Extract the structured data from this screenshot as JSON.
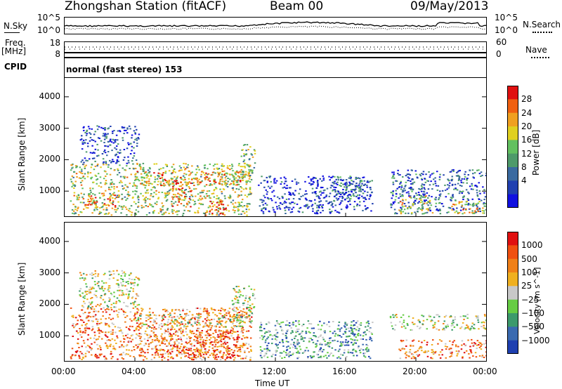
{
  "header": {
    "title": "Zhongshan Station (fitACF)",
    "beam": "Beam 00",
    "date": "09/May/2013"
  },
  "noise_panel": {
    "left_label": "N.Sky",
    "right_label": "N.Search",
    "left_ticks": [
      "10^5",
      "10^0"
    ],
    "right_ticks": [
      "10^5",
      "10^0"
    ]
  },
  "freq_panel": {
    "left_label_1": "Freq.",
    "left_label_2": "[MHz]",
    "left_ticks": [
      "18",
      "8"
    ],
    "right_label": "Nave",
    "right_ticks": [
      "60",
      "0"
    ]
  },
  "cpid_panel": {
    "label": "CPID",
    "text": "normal (fast stereo) 153"
  },
  "chart_data": [
    {
      "type": "heatmap",
      "quantity": "Power",
      "colorbar_label": "Power [dB]",
      "colorbar_ticks": [
        28,
        24,
        20,
        16,
        12,
        8,
        4
      ],
      "color_scale": [
        "#1010e0",
        "#2040b0",
        "#3a6aa0",
        "#4e9a6a",
        "#63c060",
        "#e0d020",
        "#f0a020",
        "#f06010",
        "#e01010"
      ],
      "ylabel": "Slant Range [km]",
      "y_ticks": [
        1000,
        2000,
        3000,
        4000
      ],
      "ylim": [
        200,
        4600
      ],
      "xlabel": "",
      "clusters": [
        {
          "t0": 0.3,
          "t1": 10.6,
          "r0": 250,
          "r1": 1900,
          "v": 0.55
        },
        {
          "t0": 0.8,
          "t1": 4.2,
          "r0": 1900,
          "r1": 3100,
          "v": 0.15
        },
        {
          "t0": 4.0,
          "t1": 10.5,
          "r0": 1200,
          "r1": 1650,
          "v": 0.7
        },
        {
          "t0": 6.0,
          "t1": 7.2,
          "r0": 500,
          "r1": 1400,
          "v": 0.9
        },
        {
          "t0": 8.2,
          "t1": 9.3,
          "r0": 280,
          "r1": 700,
          "v": 0.95
        },
        {
          "t0": 1.0,
          "t1": 3.0,
          "r0": 550,
          "r1": 900,
          "v": 0.85
        },
        {
          "t0": 10.0,
          "t1": 10.8,
          "r0": 1300,
          "r1": 2500,
          "v": 0.5
        },
        {
          "t0": 11.0,
          "t1": 17.5,
          "r0": 300,
          "r1": 1500,
          "v": 0.15
        },
        {
          "t0": 15.2,
          "t1": 17.0,
          "r0": 700,
          "r1": 1500,
          "v": 0.3
        },
        {
          "t0": 18.5,
          "t1": 24.0,
          "r0": 300,
          "r1": 1700,
          "v": 0.25
        },
        {
          "t0": 19.0,
          "t1": 21.0,
          "r0": 300,
          "r1": 900,
          "v": 0.6
        },
        {
          "t0": 22.0,
          "t1": 24.0,
          "r0": 300,
          "r1": 700,
          "v": 0.65
        }
      ]
    },
    {
      "type": "heatmap",
      "quantity": "Velocity",
      "colorbar_label": "Velocity [m s^-1]",
      "colorbar_ticks": [
        "1000",
        "500",
        "100",
        "25",
        "−25",
        "−100",
        "−500",
        "−1000"
      ],
      "color_scale": [
        "#1e3fb0",
        "#3a6ab0",
        "#3c9a6c",
        "#66cc44",
        "#c8c8c8",
        "#f0b020",
        "#f08018",
        "#f05010",
        "#e01010"
      ],
      "ylabel": "Slant Range [km]",
      "y_ticks": [
        1000,
        2000,
        3000,
        4000
      ],
      "ylim": [
        200,
        4600
      ],
      "xlabel": "Time UT",
      "x_ticks": [
        "00:00",
        "04:00",
        "08:00",
        "12:00",
        "16:00",
        "20:00",
        "00:00"
      ],
      "xlim": [
        0,
        24
      ],
      "clusters": [
        {
          "t0": 0.3,
          "t1": 10.6,
          "r0": 250,
          "r1": 1900,
          "v": 0.72
        },
        {
          "t0": 0.8,
          "t1": 4.2,
          "r0": 1900,
          "r1": 3100,
          "v": 0.5
        },
        {
          "t0": 4.0,
          "t1": 10.5,
          "r0": 1300,
          "r1": 1700,
          "v": 0.47
        },
        {
          "t0": 5.0,
          "t1": 10.0,
          "r0": 300,
          "r1": 1200,
          "v": 0.78
        },
        {
          "t0": 9.5,
          "t1": 10.8,
          "r0": 1400,
          "r1": 2600,
          "v": 0.47
        },
        {
          "t0": 11.0,
          "t1": 17.5,
          "r0": 300,
          "r1": 1500,
          "v": 0.3
        },
        {
          "t0": 15.5,
          "t1": 16.5,
          "r0": 800,
          "r1": 1400,
          "v": 0.2
        },
        {
          "t0": 18.5,
          "t1": 24.0,
          "r0": 1200,
          "r1": 1700,
          "v": 0.47
        },
        {
          "t0": 19.0,
          "t1": 24.0,
          "r0": 300,
          "r1": 900,
          "v": 0.75
        }
      ]
    }
  ]
}
